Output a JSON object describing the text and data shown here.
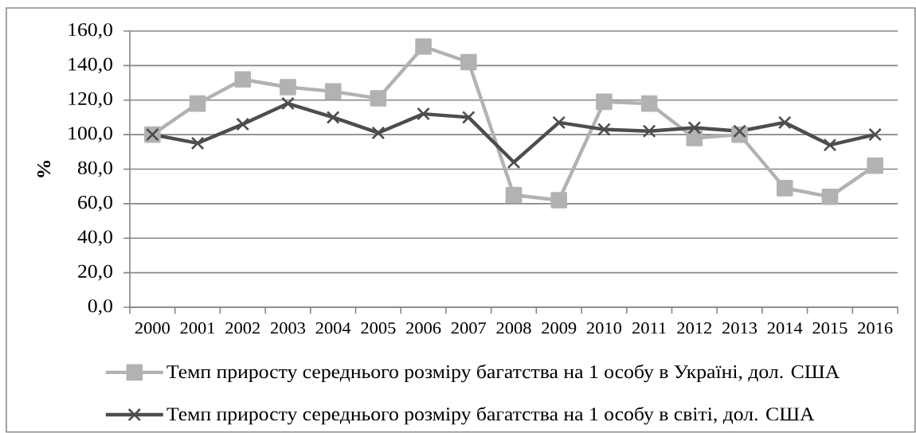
{
  "chart_data": {
    "type": "line",
    "ylabel": "%",
    "categories": [
      "2000",
      "2001",
      "2002",
      "2003",
      "2004",
      "2005",
      "2006",
      "2007",
      "2008",
      "2009",
      "2010",
      "2011",
      "2012",
      "2013",
      "2014",
      "2015",
      "2016"
    ],
    "series": [
      {
        "name": "Темп приросту середнього розміру багатства на 1 особу в Україні, дол. США",
        "color": "#b2b2b2",
        "marker": "square",
        "values": [
          100,
          118,
          132,
          127.5,
          125,
          121,
          151,
          142,
          65,
          62,
          119,
          118,
          98,
          100,
          69,
          64,
          82
        ]
      },
      {
        "name": "Темп приросту середнього розміру багатства на 1 особу в світі, дол. США",
        "color": "#4d4d4d",
        "marker": "cross",
        "values": [
          100,
          95,
          106,
          118,
          110,
          101,
          112,
          110,
          84,
          107,
          103,
          102,
          104,
          102,
          107,
          94,
          100
        ]
      }
    ],
    "ylim": [
      0,
      160
    ],
    "yticks": [
      {
        "value": 0,
        "label": "0,0"
      },
      {
        "value": 20,
        "label": "20,0"
      },
      {
        "value": 40,
        "label": "40,0"
      },
      {
        "value": 60,
        "label": "60,0"
      },
      {
        "value": 80,
        "label": "80,0"
      },
      {
        "value": 100,
        "label": "100,0"
      },
      {
        "value": 120,
        "label": "120,0"
      },
      {
        "value": 140,
        "label": "140,0"
      },
      {
        "value": 160,
        "label": "160,0"
      }
    ],
    "grid": "y",
    "legend": "bottom",
    "line_style": "solid"
  }
}
